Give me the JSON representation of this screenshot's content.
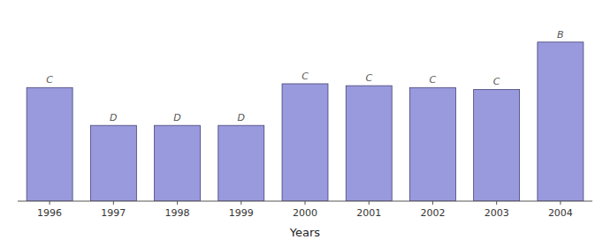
{
  "chart_data": {
    "type": "bar",
    "categories": [
      "1996",
      "1997",
      "1998",
      "1999",
      "2000",
      "2001",
      "2002",
      "2003",
      "2004"
    ],
    "values": [
      3,
      2,
      2,
      2,
      3.1,
      3.05,
      3.0,
      2.95,
      4.2
    ],
    "value_labels": [
      "C",
      "D",
      "D",
      "D",
      "C",
      "C",
      "C",
      "C",
      "B"
    ],
    "color": "#9999dd",
    "xlabel": "Years",
    "ylim": [
      0,
      4.8
    ],
    "tick_labels": "x",
    "grid": false
  }
}
